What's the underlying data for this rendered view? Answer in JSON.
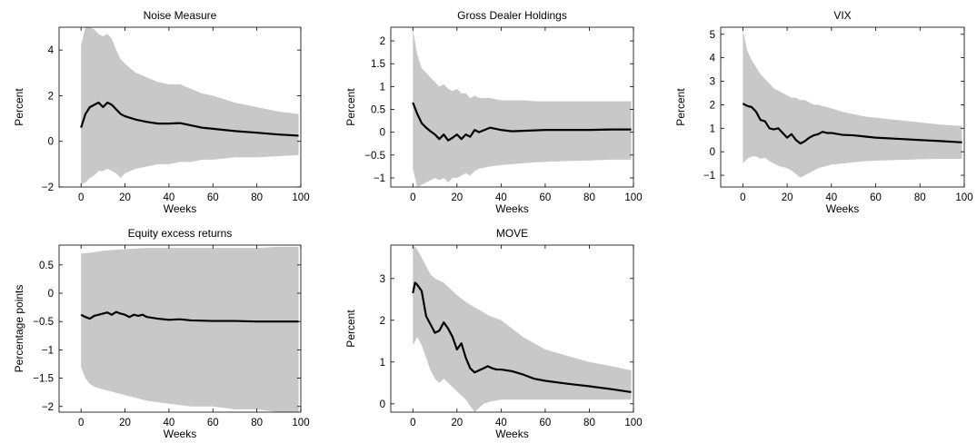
{
  "chart_data": [
    {
      "type": "line",
      "title": "Noise Measure",
      "xlabel": "Weeks",
      "ylabel": "Percent",
      "xlim": [
        -10,
        100
      ],
      "ylim": [
        -2,
        5
      ],
      "xticks": [
        0,
        20,
        40,
        60,
        80,
        100
      ],
      "yticks": [
        -2,
        0,
        2,
        4
      ],
      "ytick_labels": [
        "−2",
        "0",
        "2",
        "4"
      ],
      "band_color": "#c8c8c8",
      "line_color": "#000000",
      "series": [
        {
          "role": "point_estimate",
          "x": [
            0,
            2,
            4,
            6,
            8,
            10,
            12,
            14,
            16,
            18,
            20,
            25,
            30,
            35,
            40,
            45,
            50,
            55,
            60,
            70,
            80,
            90,
            99
          ],
          "y": [
            0.6,
            1.2,
            1.5,
            1.6,
            1.7,
            1.5,
            1.7,
            1.6,
            1.4,
            1.2,
            1.1,
            0.95,
            0.85,
            0.78,
            0.78,
            0.8,
            0.7,
            0.6,
            0.55,
            0.45,
            0.38,
            0.3,
            0.25
          ]
        },
        {
          "role": "band_upper",
          "x": [
            0,
            2,
            4,
            6,
            8,
            10,
            12,
            14,
            16,
            18,
            20,
            25,
            30,
            35,
            40,
            45,
            50,
            55,
            60,
            70,
            80,
            90,
            99
          ],
          "y": [
            4.2,
            5.0,
            5.0,
            4.9,
            4.7,
            4.6,
            4.7,
            4.5,
            4.0,
            3.6,
            3.4,
            3.0,
            2.8,
            2.6,
            2.5,
            2.5,
            2.3,
            2.1,
            2.0,
            1.7,
            1.5,
            1.3,
            1.2
          ]
        },
        {
          "role": "band_lower",
          "x": [
            0,
            2,
            4,
            6,
            8,
            10,
            12,
            14,
            16,
            18,
            20,
            25,
            30,
            35,
            40,
            45,
            50,
            55,
            60,
            70,
            80,
            90,
            99
          ],
          "y": [
            -1.9,
            -1.8,
            -1.6,
            -1.5,
            -1.3,
            -1.3,
            -1.2,
            -1.3,
            -1.4,
            -1.6,
            -1.4,
            -1.2,
            -1.1,
            -1.0,
            -1.0,
            -0.9,
            -0.9,
            -0.8,
            -0.8,
            -0.7,
            -0.7,
            -0.65,
            -0.6
          ]
        }
      ]
    },
    {
      "type": "line",
      "title": "Gross Dealer Holdings",
      "xlabel": "Weeks",
      "ylabel": "Percent",
      "xlim": [
        -10,
        100
      ],
      "ylim": [
        -1.2,
        2.3
      ],
      "xticks": [
        0,
        20,
        40,
        60,
        80,
        100
      ],
      "yticks": [
        -1,
        -0.5,
        0,
        0.5,
        1,
        1.5,
        2
      ],
      "ytick_labels": [
        "−1",
        "−0.5",
        "0",
        "0.5",
        "1",
        "1.5",
        "2"
      ],
      "band_color": "#c8c8c8",
      "line_color": "#000000",
      "series": [
        {
          "role": "point_estimate",
          "x": [
            0,
            2,
            4,
            6,
            8,
            10,
            12,
            14,
            16,
            18,
            20,
            22,
            24,
            26,
            28,
            30,
            35,
            40,
            45,
            50,
            55,
            60,
            70,
            80,
            90,
            99
          ],
          "y": [
            0.65,
            0.4,
            0.2,
            0.1,
            0.02,
            -0.05,
            -0.15,
            -0.05,
            -0.18,
            -0.12,
            -0.05,
            -0.15,
            -0.05,
            -0.1,
            0.05,
            0.0,
            0.1,
            0.05,
            0.02,
            0.03,
            0.04,
            0.05,
            0.05,
            0.05,
            0.06,
            0.06
          ]
        },
        {
          "role": "band_upper",
          "x": [
            0,
            2,
            4,
            6,
            8,
            10,
            12,
            14,
            16,
            18,
            20,
            22,
            24,
            26,
            28,
            30,
            35,
            40,
            45,
            50,
            55,
            60,
            70,
            80,
            90,
            99
          ],
          "y": [
            2.25,
            1.7,
            1.4,
            1.3,
            1.2,
            1.1,
            1.0,
            1.05,
            0.95,
            0.9,
            0.95,
            0.85,
            0.85,
            0.75,
            0.8,
            0.75,
            0.75,
            0.7,
            0.7,
            0.7,
            0.68,
            0.68,
            0.68,
            0.68,
            0.68,
            0.68
          ]
        },
        {
          "role": "band_lower",
          "x": [
            0,
            2,
            4,
            6,
            8,
            10,
            12,
            14,
            16,
            18,
            20,
            22,
            24,
            26,
            28,
            30,
            35,
            40,
            45,
            50,
            55,
            60,
            70,
            80,
            90,
            99
          ],
          "y": [
            -0.8,
            -1.2,
            -1.15,
            -1.1,
            -1.05,
            -1.0,
            -1.05,
            -1.0,
            -1.1,
            -1.0,
            -1.0,
            -0.95,
            -0.9,
            -0.95,
            -0.85,
            -0.8,
            -0.75,
            -0.72,
            -0.7,
            -0.68,
            -0.66,
            -0.65,
            -0.63,
            -0.62,
            -0.6,
            -0.6
          ]
        }
      ]
    },
    {
      "type": "line",
      "title": "VIX",
      "xlabel": "Weeks",
      "ylabel": "Percent",
      "xlim": [
        -10,
        100
      ],
      "ylim": [
        -1.5,
        5.3
      ],
      "xticks": [
        0,
        20,
        40,
        60,
        80,
        100
      ],
      "yticks": [
        -1,
        0,
        1,
        2,
        3,
        4,
        5
      ],
      "ytick_labels": [
        "−1",
        "0",
        "1",
        "2",
        "3",
        "4",
        "5"
      ],
      "band_color": "#c8c8c8",
      "line_color": "#000000",
      "series": [
        {
          "role": "point_estimate",
          "x": [
            0,
            2,
            4,
            6,
            8,
            10,
            12,
            14,
            16,
            18,
            20,
            22,
            24,
            26,
            28,
            30,
            32,
            34,
            36,
            38,
            40,
            45,
            50,
            55,
            60,
            70,
            80,
            90,
            99
          ],
          "y": [
            2.05,
            1.95,
            1.9,
            1.7,
            1.35,
            1.3,
            1.0,
            0.95,
            1.0,
            0.8,
            0.6,
            0.75,
            0.5,
            0.35,
            0.45,
            0.6,
            0.7,
            0.75,
            0.85,
            0.8,
            0.8,
            0.72,
            0.7,
            0.65,
            0.6,
            0.55,
            0.5,
            0.45,
            0.4
          ]
        },
        {
          "role": "band_upper",
          "x": [
            0,
            2,
            4,
            6,
            8,
            10,
            12,
            14,
            16,
            18,
            20,
            22,
            24,
            26,
            28,
            30,
            32,
            34,
            36,
            38,
            40,
            45,
            50,
            55,
            60,
            70,
            80,
            90,
            99
          ],
          "y": [
            5.2,
            4.3,
            3.9,
            3.6,
            3.3,
            3.1,
            2.9,
            2.7,
            2.6,
            2.5,
            2.4,
            2.3,
            2.3,
            2.2,
            2.2,
            2.1,
            2.0,
            2.0,
            1.95,
            1.9,
            1.85,
            1.7,
            1.6,
            1.5,
            1.45,
            1.35,
            1.25,
            1.15,
            1.1
          ]
        },
        {
          "role": "band_lower",
          "x": [
            0,
            2,
            4,
            6,
            8,
            10,
            12,
            14,
            16,
            18,
            20,
            22,
            24,
            26,
            28,
            30,
            32,
            34,
            36,
            38,
            40,
            45,
            50,
            55,
            60,
            70,
            80,
            90,
            99
          ],
          "y": [
            -0.5,
            -0.3,
            -0.2,
            -0.2,
            -0.3,
            -0.25,
            -0.4,
            -0.5,
            -0.6,
            -0.65,
            -0.7,
            -0.8,
            -0.95,
            -1.1,
            -1.0,
            -0.9,
            -0.8,
            -0.7,
            -0.65,
            -0.6,
            -0.55,
            -0.5,
            -0.45,
            -0.4,
            -0.38,
            -0.35,
            -0.32,
            -0.3,
            -0.3
          ]
        }
      ]
    },
    {
      "type": "line",
      "title": "Equity excess returns",
      "xlabel": "Weeks",
      "ylabel": "Percentage points",
      "xlim": [
        -10,
        100
      ],
      "ylim": [
        -2.1,
        0.85
      ],
      "xticks": [
        0,
        20,
        40,
        60,
        80,
        100
      ],
      "yticks": [
        -2,
        -1.5,
        -1,
        -0.5,
        0,
        0.5
      ],
      "ytick_labels": [
        "−2",
        "−1.5",
        "−1",
        "−0.5",
        "0",
        "0.5"
      ],
      "band_color": "#c8c8c8",
      "line_color": "#000000",
      "series": [
        {
          "role": "point_estimate",
          "x": [
            0,
            2,
            4,
            6,
            8,
            10,
            12,
            14,
            16,
            18,
            20,
            22,
            24,
            26,
            28,
            30,
            35,
            40,
            45,
            50,
            60,
            70,
            80,
            90,
            99
          ],
          "y": [
            -0.38,
            -0.42,
            -0.45,
            -0.4,
            -0.38,
            -0.36,
            -0.34,
            -0.38,
            -0.33,
            -0.36,
            -0.38,
            -0.42,
            -0.38,
            -0.4,
            -0.38,
            -0.42,
            -0.45,
            -0.47,
            -0.46,
            -0.48,
            -0.49,
            -0.49,
            -0.5,
            -0.5,
            -0.5
          ]
        },
        {
          "role": "band_upper",
          "x": [
            0,
            5,
            10,
            20,
            30,
            40,
            50,
            60,
            70,
            80,
            90,
            99
          ],
          "y": [
            0.7,
            0.72,
            0.75,
            0.78,
            0.8,
            0.8,
            0.8,
            0.8,
            0.8,
            0.8,
            0.82,
            0.82
          ]
        },
        {
          "role": "band_lower",
          "x": [
            0,
            2,
            4,
            6,
            10,
            15,
            20,
            25,
            30,
            40,
            50,
            60,
            70,
            80,
            90,
            99
          ],
          "y": [
            -1.3,
            -1.5,
            -1.6,
            -1.65,
            -1.7,
            -1.75,
            -1.8,
            -1.85,
            -1.9,
            -1.95,
            -2.0,
            -2.0,
            -2.05,
            -2.05,
            -2.1,
            -2.1
          ]
        }
      ]
    },
    {
      "type": "line",
      "title": "MOVE",
      "xlabel": "Weeks",
      "ylabel": "Percent",
      "xlim": [
        -10,
        100
      ],
      "ylim": [
        -0.2,
        3.8
      ],
      "xticks": [
        0,
        20,
        40,
        60,
        80,
        100
      ],
      "yticks": [
        0,
        1,
        2,
        3
      ],
      "ytick_labels": [
        "0",
        "1",
        "2",
        "3"
      ],
      "band_color": "#c8c8c8",
      "line_color": "#000000",
      "series": [
        {
          "role": "point_estimate",
          "x": [
            0,
            1,
            2,
            4,
            6,
            8,
            10,
            12,
            14,
            16,
            18,
            20,
            22,
            24,
            26,
            28,
            30,
            32,
            34,
            36,
            38,
            40,
            45,
            50,
            55,
            60,
            70,
            80,
            90,
            99
          ],
          "y": [
            2.65,
            2.9,
            2.85,
            2.7,
            2.1,
            1.9,
            1.7,
            1.75,
            1.95,
            1.8,
            1.6,
            1.3,
            1.45,
            1.1,
            0.85,
            0.75,
            0.8,
            0.85,
            0.9,
            0.85,
            0.82,
            0.82,
            0.78,
            0.7,
            0.6,
            0.55,
            0.48,
            0.42,
            0.35,
            0.28
          ]
        },
        {
          "role": "band_upper",
          "x": [
            0,
            2,
            4,
            6,
            8,
            10,
            12,
            14,
            16,
            18,
            20,
            25,
            30,
            35,
            40,
            45,
            50,
            55,
            60,
            70,
            80,
            90,
            99
          ],
          "y": [
            3.8,
            3.7,
            3.5,
            3.3,
            3.1,
            3.0,
            2.95,
            2.9,
            2.8,
            2.7,
            2.6,
            2.4,
            2.25,
            2.1,
            2.0,
            1.8,
            1.6,
            1.45,
            1.3,
            1.15,
            1.0,
            0.9,
            0.8
          ]
        },
        {
          "role": "band_lower",
          "x": [
            0,
            2,
            4,
            6,
            8,
            10,
            12,
            14,
            16,
            18,
            20,
            22,
            24,
            26,
            28,
            30,
            32,
            35,
            40,
            45,
            50,
            55,
            60,
            70,
            80,
            90,
            99
          ],
          "y": [
            1.4,
            1.6,
            1.4,
            1.1,
            0.8,
            0.6,
            0.5,
            0.6,
            0.5,
            0.4,
            0.3,
            0.2,
            0.1,
            -0.05,
            -0.2,
            -0.1,
            0.0,
            0.05,
            0.1,
            0.1,
            0.1,
            0.1,
            0.1,
            0.1,
            0.1,
            0.1,
            0.1
          ]
        }
      ]
    }
  ]
}
